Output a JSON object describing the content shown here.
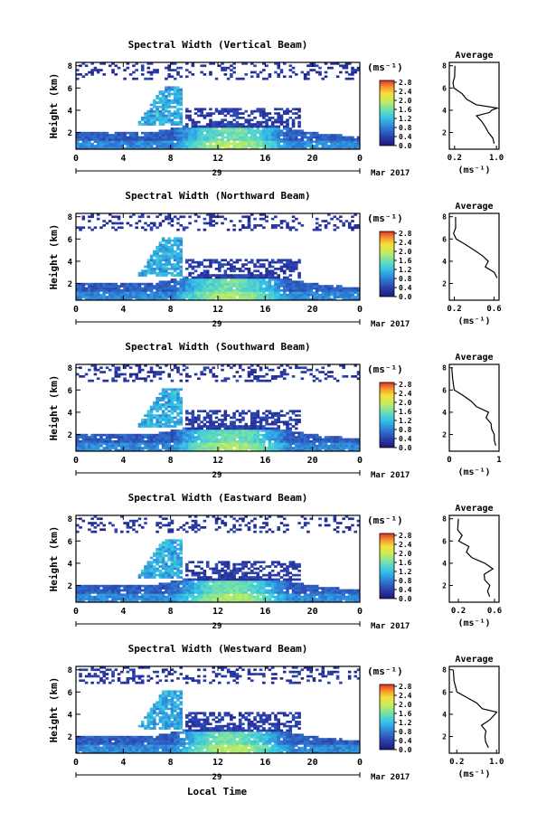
{
  "figure": {
    "xlabel": "Local Time",
    "date_day": "29",
    "date_month": "Mar 2017",
    "ylabel": "Height (km)",
    "cbar_unit": "(ms⁻¹)",
    "cbar_ticks": [
      "2.8",
      "2.4",
      "2.0",
      "1.6",
      "1.2",
      "0.8",
      "0.4",
      "0.0"
    ],
    "avg_title": "Average",
    "avg_xlabel": "(ms⁻¹)"
  },
  "chart_data": [
    {
      "type": "heatmap",
      "title": "Spectral Width (Vertical Beam)",
      "x_ticks": [
        "0",
        "4",
        "8",
        "12",
        "16",
        "20",
        "0"
      ],
      "xlim": [
        0,
        24
      ],
      "y_ticks": [
        "2",
        "4",
        "6",
        "8"
      ],
      "ylim": [
        0.5,
        8.3
      ],
      "colorbar": {
        "range": [
          0.0,
          3.0
        ],
        "unit": "ms⁻¹"
      },
      "avg_profile": {
        "x_ticks": [
          "0.2",
          "1.0"
        ],
        "xlim": [
          0.1,
          1.05
        ],
        "heights": [
          1,
          1.5,
          2,
          2.5,
          3,
          3.5,
          3.8,
          4,
          4.2,
          4.5,
          5,
          5.5,
          6,
          6.5,
          7,
          8
        ],
        "values": [
          0.95,
          0.92,
          0.85,
          0.8,
          0.72,
          0.62,
          0.85,
          0.9,
          1.0,
          0.6,
          0.42,
          0.35,
          0.2,
          0.18,
          0.22,
          0.22
        ]
      }
    },
    {
      "type": "heatmap",
      "title": "Spectral Width (Northward Beam)",
      "x_ticks": [
        "0",
        "4",
        "8",
        "12",
        "16",
        "20",
        "0"
      ],
      "xlim": [
        0,
        24
      ],
      "y_ticks": [
        "2",
        "4",
        "6",
        "8"
      ],
      "ylim": [
        0.5,
        8.3
      ],
      "colorbar": {
        "range": [
          0.0,
          3.0
        ],
        "unit": "ms⁻¹"
      },
      "avg_profile": {
        "x_ticks": [
          "0.2",
          "0.6"
        ],
        "xlim": [
          0.15,
          0.65
        ],
        "heights": [
          2.5,
          3,
          3.5,
          4,
          4.5,
          5,
          5.5,
          6,
          6.5,
          7,
          8
        ],
        "values": [
          0.62,
          0.6,
          0.52,
          0.55,
          0.48,
          0.4,
          0.32,
          0.22,
          0.2,
          0.22,
          0.22
        ]
      }
    },
    {
      "type": "heatmap",
      "title": "Spectral Width (Southward Beam)",
      "x_ticks": [
        "0",
        "4",
        "8",
        "12",
        "16",
        "20",
        "0"
      ],
      "xlim": [
        0,
        24
      ],
      "y_ticks": [
        "2",
        "4",
        "6",
        "8"
      ],
      "ylim": [
        0.5,
        8.3
      ],
      "colorbar": {
        "range": [
          0.0,
          3.0
        ],
        "unit": "ms⁻¹"
      },
      "avg_profile": {
        "x_ticks": [
          "0",
          "1"
        ],
        "xlim": [
          0,
          1
        ],
        "heights": [
          1,
          1.5,
          2,
          2.5,
          3,
          3.5,
          4,
          4.5,
          5,
          5.5,
          6,
          7,
          8
        ],
        "values": [
          0.95,
          0.9,
          0.9,
          0.85,
          0.82,
          0.75,
          0.8,
          0.55,
          0.45,
          0.3,
          0.1,
          0.05,
          0.05
        ]
      }
    },
    {
      "type": "heatmap",
      "title": "Spectral Width (Eastward Beam)",
      "x_ticks": [
        "0",
        "4",
        "8",
        "12",
        "16",
        "20",
        "0"
      ],
      "xlim": [
        0,
        24
      ],
      "y_ticks": [
        "2",
        "4",
        "6",
        "8"
      ],
      "ylim": [
        0.5,
        8.3
      ],
      "colorbar": {
        "range": [
          0.0,
          3.0
        ],
        "unit": "ms⁻¹"
      },
      "avg_profile": {
        "x_ticks": [
          "0.2",
          "0.6"
        ],
        "xlim": [
          0.1,
          0.65
        ],
        "heights": [
          1,
          1.5,
          2,
          2.5,
          3,
          3.5,
          4,
          4.5,
          5,
          5.5,
          6,
          6.5,
          7,
          8
        ],
        "values": [
          0.55,
          0.52,
          0.55,
          0.5,
          0.48,
          0.58,
          0.5,
          0.35,
          0.3,
          0.32,
          0.2,
          0.25,
          0.2,
          0.2
        ]
      }
    },
    {
      "type": "heatmap",
      "title": "Spectral Width (Westward Beam)",
      "x_ticks": [
        "0",
        "4",
        "8",
        "12",
        "16",
        "20",
        "0"
      ],
      "xlim": [
        0,
        24
      ],
      "y_ticks": [
        "2",
        "4",
        "6",
        "8"
      ],
      "ylim": [
        0.5,
        8.3
      ],
      "colorbar": {
        "range": [
          0.0,
          3.0
        ],
        "unit": "ms⁻¹"
      },
      "avg_profile": {
        "x_ticks": [
          "0.2",
          "1.0"
        ],
        "xlim": [
          0.05,
          1.05
        ],
        "heights": [
          1,
          1.5,
          2,
          2.5,
          3,
          3.5,
          4,
          4.2,
          4.5,
          5,
          5.5,
          6,
          7,
          8
        ],
        "values": [
          0.85,
          0.8,
          0.75,
          0.8,
          0.7,
          0.85,
          0.95,
          1.0,
          0.7,
          0.6,
          0.4,
          0.2,
          0.15,
          0.15
        ]
      }
    }
  ]
}
